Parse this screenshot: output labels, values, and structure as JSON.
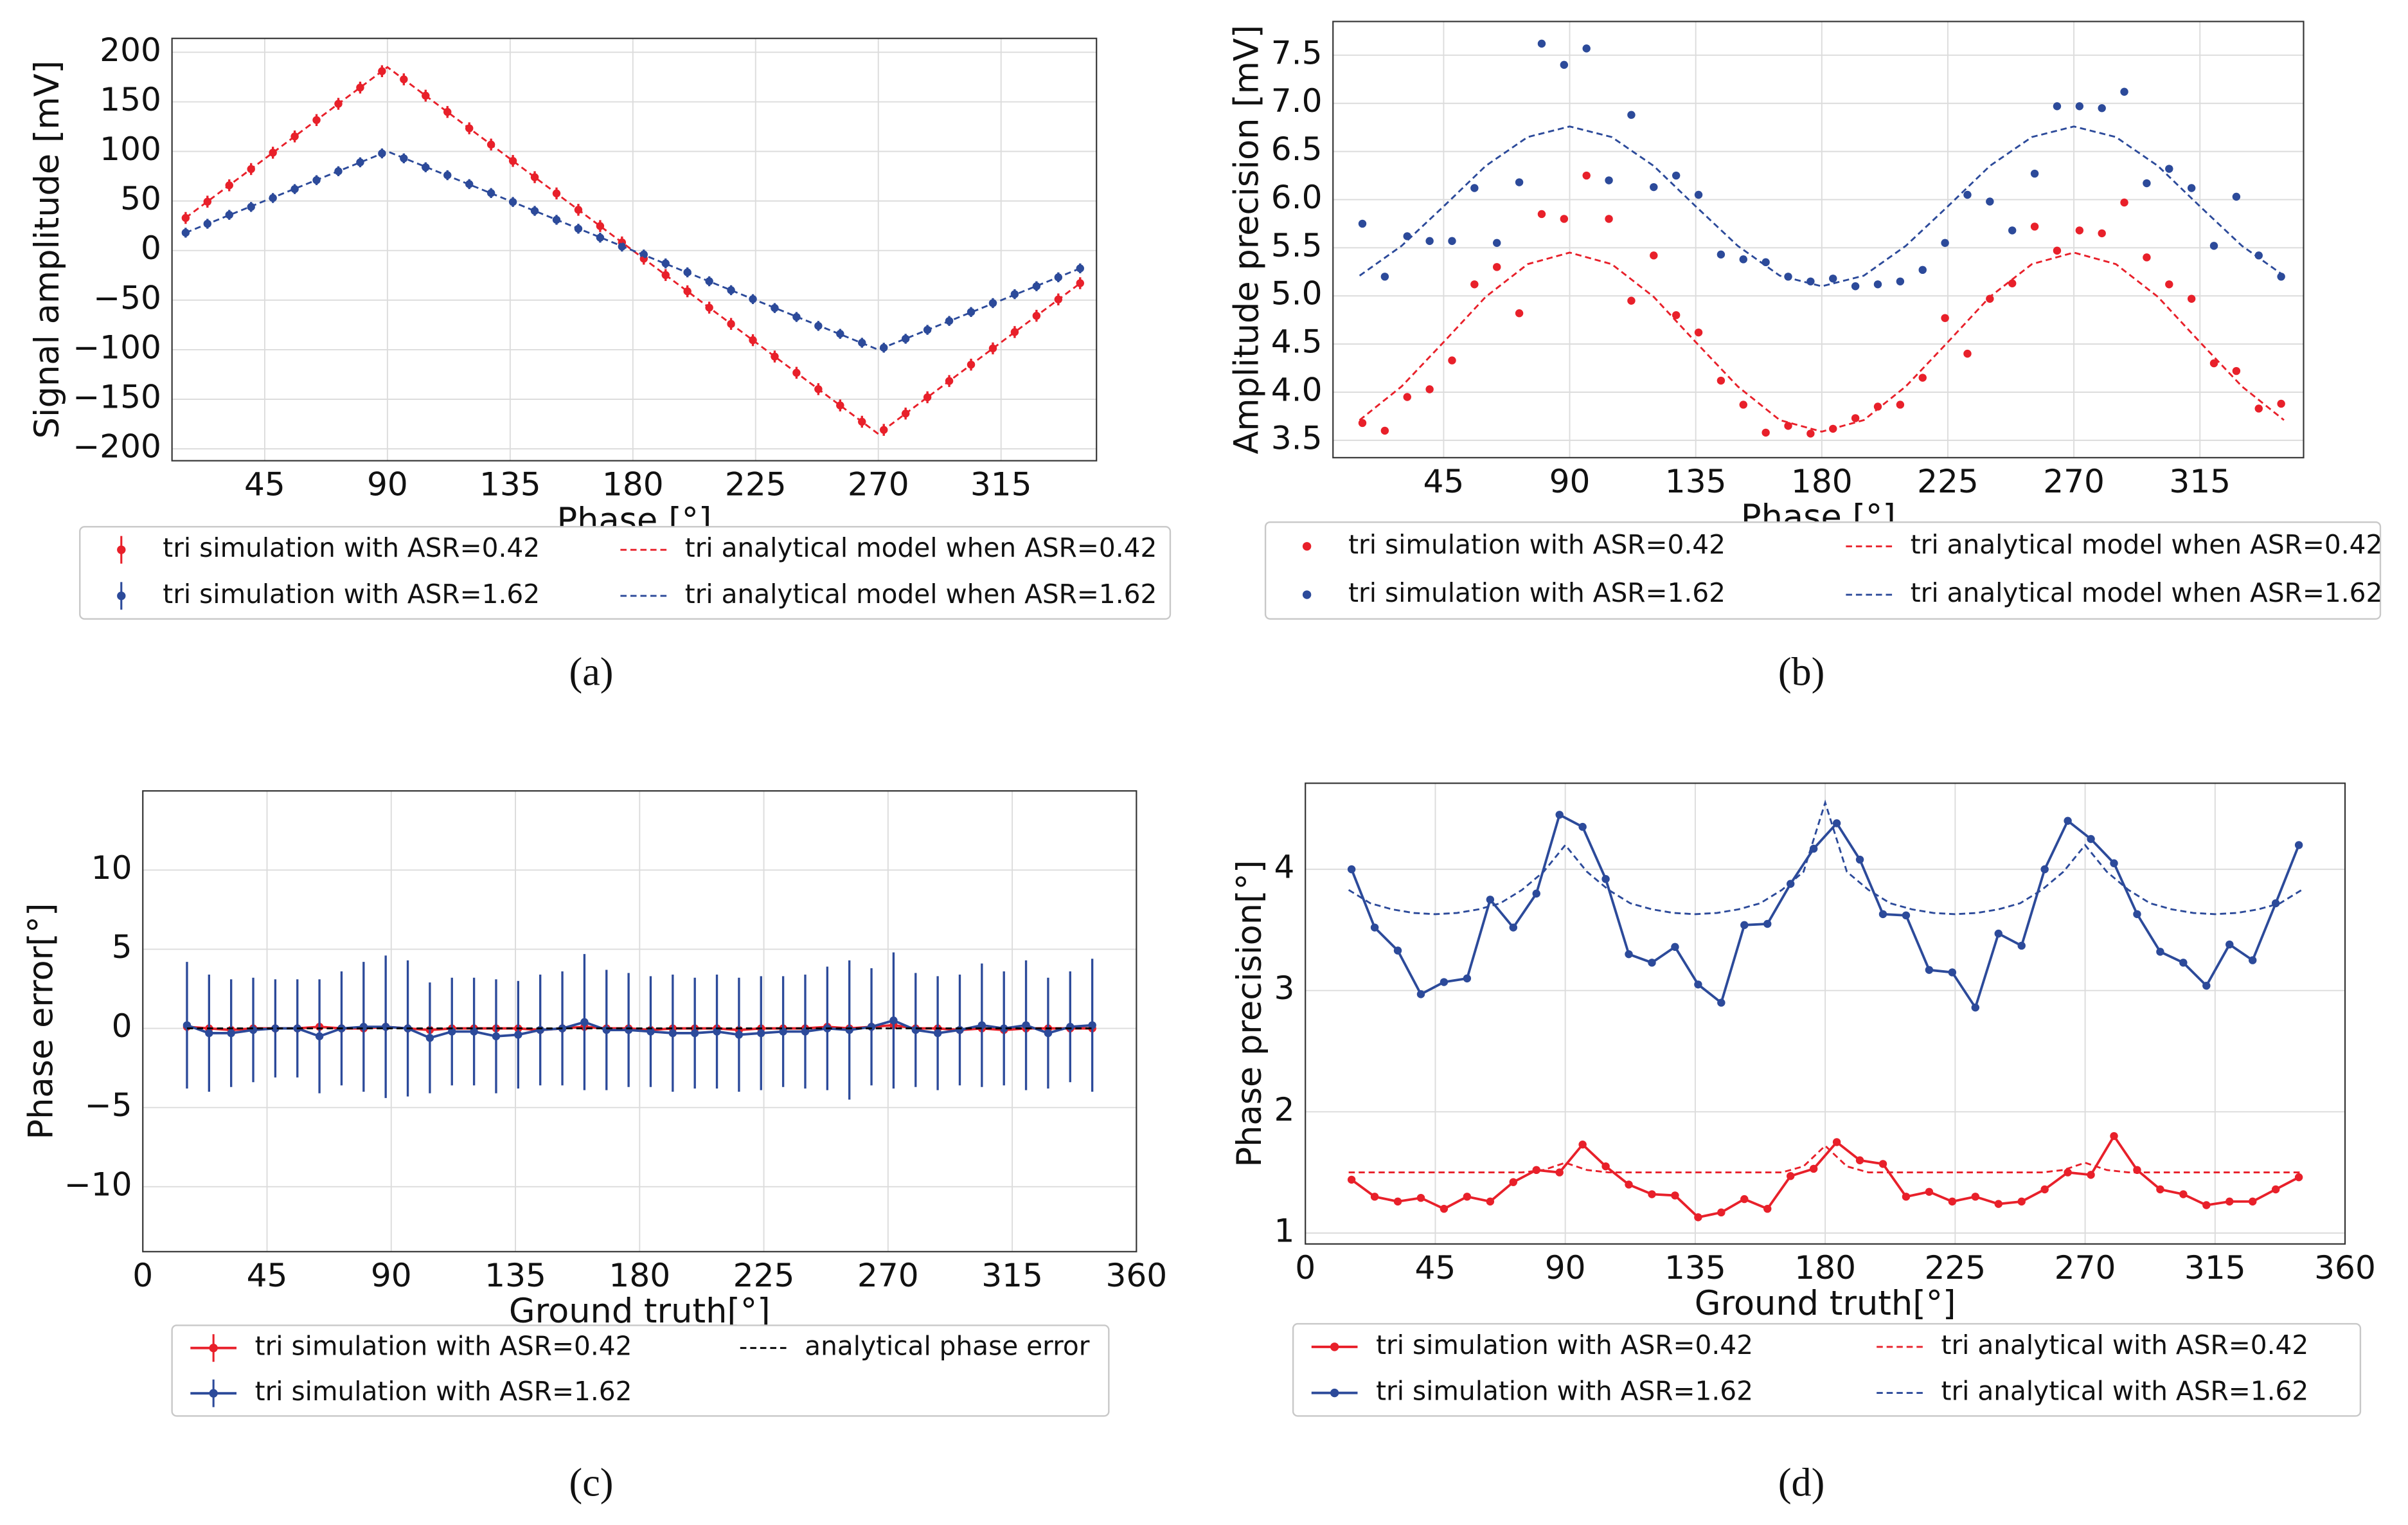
{
  "chart_data": [
    {
      "type": "errorbar",
      "panel_label": "(a)",
      "xlabel": "Phase [°]",
      "ylabel": "Signal amplitude [mV]",
      "grid": true,
      "legend_columns": 2,
      "xlim": [
        11,
        350
      ],
      "ylim": [
        -212,
        214
      ],
      "xticks": [
        45,
        90,
        135,
        180,
        225,
        270,
        315
      ],
      "yticks": [
        {
          "value": -200,
          "label": "−200"
        },
        {
          "value": -150,
          "label": "−150"
        },
        {
          "value": -100,
          "label": "−100"
        },
        {
          "value": -50,
          "label": "−50"
        },
        0,
        50,
        100,
        150,
        200
      ],
      "x": [
        16,
        24,
        32,
        40,
        48,
        56,
        64,
        72,
        80,
        88,
        96,
        104,
        112,
        120,
        128,
        136,
        144,
        152,
        160,
        168,
        176,
        184,
        192,
        200,
        208,
        216,
        224,
        232,
        240,
        248,
        256,
        264,
        272,
        280,
        288,
        296,
        304,
        312,
        320,
        328,
        336,
        344
      ],
      "series": [
        {
          "name": "tri simulation with ASR=0.42",
          "color": "#e8202a",
          "linestyle": "none",
          "marker": true,
          "error": 6,
          "values": [
            32.9,
            49.3,
            65.8,
            82.2,
            98.7,
            115.1,
            131.6,
            148,
            164.4,
            180.9,
            172.7,
            156.2,
            139.8,
            123.3,
            106.9,
            90.4,
            74,
            57.6,
            41.1,
            24.7,
            8.2,
            -8.2,
            -24.7,
            -41.1,
            -57.6,
            -74,
            -90.4,
            -106.9,
            -123.3,
            -139.8,
            -156.2,
            -172.7,
            -180.9,
            -164.4,
            -148,
            -131.6,
            -115.1,
            -98.7,
            -82.2,
            -65.8,
            -49.3,
            -32.9
          ]
        },
        {
          "name": "tri simulation with ASR=1.62",
          "color": "#2c4a9a",
          "linestyle": "none",
          "marker": true,
          "error": 5,
          "values": [
            18,
            27,
            36,
            44,
            53,
            62,
            71,
            80,
            89,
            98,
            93,
            84,
            76,
            67,
            58,
            49,
            40,
            31,
            22,
            13,
            4,
            -4,
            -13,
            -22,
            -31,
            -40,
            -49,
            -58,
            -67,
            -76,
            -84,
            -93,
            -98,
            -89,
            -80,
            -71,
            -62,
            -53,
            -44,
            -36,
            -27,
            -18
          ]
        },
        {
          "name": "tri analytical model when ASR=0.42",
          "color": "#e8202a",
          "linestyle": "dashed",
          "marker": false,
          "x": [
            16,
            90,
            270,
            344
          ],
          "values": [
            33,
            185,
            -185,
            -33
          ]
        },
        {
          "name": "tri analytical model when ASR=1.62",
          "color": "#2c4a9a",
          "linestyle": "dashed",
          "marker": false,
          "x": [
            16,
            90,
            270,
            344
          ],
          "values": [
            18,
            100,
            -100,
            -18
          ]
        }
      ]
    },
    {
      "type": "scatter",
      "panel_label": "(b)",
      "xlabel": "Phase [°]",
      "ylabel": "Amplitude precision [mV]",
      "grid": true,
      "legend_columns": 2,
      "xlim": [
        5.5,
        352
      ],
      "ylim": [
        3.32,
        7.85
      ],
      "xticks": [
        45,
        90,
        135,
        180,
        225,
        270,
        315
      ],
      "yticks": [
        3.5,
        {
          "value": 4,
          "label": "4.0"
        },
        4.5,
        {
          "value": 5,
          "label": "5.0"
        },
        5.5,
        {
          "value": 6,
          "label": "6.0"
        },
        6.5,
        {
          "value": 7,
          "label": "7.0"
        },
        7.5
      ],
      "x": [
        16,
        24,
        32,
        40,
        48,
        56,
        64,
        72,
        80,
        88,
        96,
        104,
        112,
        120,
        128,
        136,
        144,
        152,
        160,
        168,
        176,
        184,
        192,
        200,
        208,
        216,
        224,
        232,
        240,
        248,
        256,
        264,
        272,
        280,
        288,
        296,
        304,
        312,
        320,
        328,
        336,
        344
      ],
      "series": [
        {
          "name": "tri simulation with ASR=0.42",
          "color": "#e8202a",
          "linestyle": "none",
          "marker": true,
          "values": [
            3.68,
            3.6,
            3.95,
            4.03,
            4.33,
            5.12,
            5.3,
            4.82,
            5.85,
            5.8,
            6.25,
            5.8,
            4.95,
            5.42,
            4.8,
            4.62,
            4.12,
            3.87,
            3.58,
            3.65,
            3.57,
            3.62,
            3.73,
            3.85,
            3.87,
            4.15,
            4.77,
            4.4,
            4.97,
            5.13,
            5.72,
            5.47,
            5.68,
            5.65,
            5.97,
            5.4,
            5.12,
            4.97,
            4.3,
            4.22,
            3.83,
            3.88
          ]
        },
        {
          "name": "tri simulation with ASR=1.62",
          "color": "#2c4a9a",
          "linestyle": "none",
          "marker": true,
          "values": [
            5.75,
            5.2,
            5.62,
            5.57,
            5.57,
            6.12,
            5.55,
            6.18,
            7.62,
            7.4,
            7.57,
            6.2,
            6.88,
            6.13,
            6.25,
            6.05,
            5.43,
            5.38,
            5.35,
            5.2,
            5.15,
            5.18,
            5.1,
            5.12,
            5.15,
            5.27,
            5.55,
            6.05,
            5.98,
            5.68,
            6.27,
            6.97,
            6.97,
            6.95,
            7.12,
            6.17,
            6.32,
            6.12,
            5.52,
            6.03,
            5.42,
            5.2
          ]
        },
        {
          "name": "tri analytical model when ASR=0.42",
          "color": "#e8202a",
          "linestyle": "dashed",
          "marker": false,
          "x": [
            15,
            30,
            45,
            60,
            75,
            90,
            105,
            120,
            135,
            150,
            165,
            180,
            195,
            210,
            225,
            240,
            255,
            270,
            285,
            300,
            315,
            330,
            345
          ],
          "values": [
            3.71,
            4.06,
            4.52,
            4.99,
            5.33,
            5.45,
            5.33,
            4.99,
            4.52,
            4.06,
            3.71,
            3.59,
            3.71,
            4.06,
            4.52,
            4.99,
            5.33,
            5.45,
            5.33,
            4.99,
            4.52,
            4.06,
            3.71
          ]
        },
        {
          "name": "tri analytical model when ASR=1.62",
          "color": "#2c4a9a",
          "linestyle": "dashed",
          "marker": false,
          "x": [
            15,
            30,
            45,
            60,
            75,
            90,
            105,
            120,
            135,
            150,
            165,
            180,
            195,
            210,
            225,
            240,
            255,
            270,
            285,
            300,
            315,
            330,
            345
          ],
          "values": [
            5.21,
            5.52,
            5.93,
            6.35,
            6.65,
            6.76,
            6.65,
            6.35,
            5.93,
            5.52,
            5.21,
            5.1,
            5.21,
            5.52,
            5.93,
            6.35,
            6.65,
            6.76,
            6.65,
            6.35,
            5.93,
            5.52,
            5.21
          ]
        }
      ]
    },
    {
      "type": "errorbar",
      "panel_label": "(c)",
      "xlabel": "Ground truth[°]",
      "ylabel": "Phase error[°]",
      "grid": true,
      "legend_columns": 2,
      "xlim": [
        0,
        360
      ],
      "ylim": [
        -14.1,
        15
      ],
      "xticks": [
        0,
        45,
        90,
        135,
        180,
        225,
        270,
        315,
        360
      ],
      "yticks": [
        {
          "value": -10,
          "label": "−10"
        },
        {
          "value": -5,
          "label": "−5"
        },
        0,
        5,
        10
      ],
      "x": [
        16,
        24,
        32,
        40,
        48,
        56,
        64,
        72,
        80,
        88,
        96,
        104,
        112,
        120,
        128,
        136,
        144,
        152,
        160,
        168,
        176,
        184,
        192,
        200,
        208,
        216,
        224,
        232,
        240,
        248,
        256,
        264,
        272,
        280,
        288,
        296,
        304,
        312,
        320,
        328,
        336,
        344
      ],
      "series": [
        {
          "name": "tri simulation with ASR=0.42",
          "color": "#e8202a",
          "linestyle": "solid",
          "marker": true,
          "error": 0.3,
          "values": [
            0.1,
            0,
            -0.1,
            0,
            0,
            0,
            0.1,
            0,
            0,
            0.1,
            0,
            -0.1,
            0,
            0,
            0,
            0,
            -0.1,
            0,
            0.1,
            0,
            0,
            -0.1,
            0,
            0,
            0,
            -0.1,
            0,
            0,
            0,
            0.1,
            0,
            0.1,
            0.2,
            0,
            0,
            -0.1,
            0,
            -0.1,
            0,
            0,
            0,
            0
          ]
        },
        {
          "name": "tri simulation with ASR=1.62",
          "color": "#2c4a9a",
          "linestyle": "solid",
          "marker": true,
          "values": [
            0.2,
            -0.3,
            -0.3,
            -0.1,
            0,
            0,
            -0.5,
            0,
            0.1,
            0.1,
            0,
            -0.6,
            -0.2,
            -0.2,
            -0.5,
            -0.4,
            -0.1,
            0,
            0.4,
            -0.1,
            -0.1,
            -0.2,
            -0.3,
            -0.3,
            -0.2,
            -0.4,
            -0.3,
            -0.2,
            -0.2,
            0,
            -0.1,
            0.1,
            0.5,
            -0.1,
            -0.3,
            -0.1,
            0.2,
            0,
            0.2,
            -0.3,
            0.1,
            0.2
          ],
          "errors": [
            4,
            3.7,
            3.4,
            3.3,
            3.1,
            3.1,
            3.6,
            3.6,
            4.1,
            4.5,
            4.3,
            3.5,
            3.4,
            3.4,
            3.6,
            3.4,
            3.5,
            3.6,
            4.3,
            3.8,
            3.6,
            3.5,
            3.7,
            3.5,
            3.6,
            3.6,
            3.6,
            3.5,
            3.6,
            3.9,
            4.4,
            3.7,
            4.3,
            3.6,
            3.6,
            3.5,
            3.9,
            3.6,
            4.1,
            3.5,
            3.5,
            4.2
          ]
        },
        {
          "name": "analytical phase error",
          "color": "#000000",
          "linestyle": "dashed",
          "marker": false,
          "x": [
            16,
            344
          ],
          "values": [
            0,
            0
          ]
        }
      ]
    },
    {
      "type": "line",
      "panel_label": "(d)",
      "xlabel": "Ground truth[°]",
      "ylabel": "Phase precision[°]",
      "grid": true,
      "legend_columns": 2,
      "xlim": [
        0,
        360
      ],
      "ylim": [
        0.91,
        4.71
      ],
      "xticks": [
        0,
        45,
        90,
        135,
        180,
        225,
        270,
        315,
        360
      ],
      "yticks": [
        1,
        2,
        3,
        4
      ],
      "x": [
        16,
        24,
        32,
        40,
        48,
        56,
        64,
        72,
        80,
        88,
        96,
        104,
        112,
        120,
        128,
        136,
        144,
        152,
        160,
        168,
        176,
        184,
        192,
        200,
        208,
        216,
        224,
        232,
        240,
        248,
        256,
        264,
        272,
        280,
        288,
        296,
        304,
        312,
        320,
        328,
        336,
        344
      ],
      "series": [
        {
          "name": "tri simulation with ASR=0.42",
          "color": "#e8202a",
          "linestyle": "solid",
          "marker": true,
          "values": [
            1.44,
            1.3,
            1.26,
            1.29,
            1.2,
            1.3,
            1.26,
            1.42,
            1.52,
            1.5,
            1.73,
            1.55,
            1.4,
            1.32,
            1.31,
            1.13,
            1.17,
            1.28,
            1.2,
            1.47,
            1.53,
            1.75,
            1.6,
            1.57,
            1.3,
            1.34,
            1.26,
            1.3,
            1.24,
            1.26,
            1.36,
            1.5,
            1.48,
            1.8,
            1.52,
            1.36,
            1.32,
            1.23,
            1.26,
            1.26,
            1.36,
            1.46
          ]
        },
        {
          "name": "tri simulation with ASR=1.62",
          "color": "#2c4a9a",
          "linestyle": "solid",
          "marker": true,
          "values": [
            4.0,
            3.52,
            3.33,
            2.97,
            3.07,
            3.1,
            3.75,
            3.52,
            3.8,
            4.45,
            4.35,
            3.92,
            3.3,
            3.23,
            3.36,
            3.05,
            2.9,
            3.54,
            3.55,
            3.88,
            4.17,
            4.38,
            4.08,
            3.63,
            3.62,
            3.17,
            3.15,
            2.86,
            3.47,
            3.37,
            4.0,
            4.4,
            4.25,
            4.05,
            3.63,
            3.32,
            3.23,
            3.04,
            3.38,
            3.25,
            3.72,
            4.2
          ]
        },
        {
          "name": "tri analytical with ASR=0.42",
          "color": "#e8202a",
          "linestyle": "dashed",
          "marker": false,
          "x": [
            15,
            22.5,
            30,
            37.5,
            45,
            52.5,
            60,
            67.5,
            75,
            82.5,
            90,
            97.5,
            105,
            112.5,
            120,
            127.5,
            135,
            142.5,
            150,
            157.5,
            165,
            172.5,
            180,
            187.5,
            195,
            202.5,
            210,
            217.5,
            225,
            232.5,
            240,
            247.5,
            255,
            262.5,
            270,
            277.5,
            285,
            292.5,
            300,
            307.5,
            315,
            322.5,
            330,
            337.5,
            345
          ],
          "values": [
            1.5,
            1.5,
            1.5,
            1.5,
            1.5,
            1.5,
            1.5,
            1.5,
            1.5,
            1.52,
            1.58,
            1.52,
            1.5,
            1.5,
            1.5,
            1.5,
            1.5,
            1.5,
            1.5,
            1.5,
            1.5,
            1.55,
            1.72,
            1.55,
            1.5,
            1.5,
            1.5,
            1.5,
            1.5,
            1.5,
            1.5,
            1.5,
            1.5,
            1.52,
            1.58,
            1.52,
            1.5,
            1.5,
            1.5,
            1.5,
            1.5,
            1.5,
            1.5,
            1.5,
            1.5
          ]
        },
        {
          "name": "tri analytical with ASR=1.62",
          "color": "#2c4a9a",
          "linestyle": "dashed",
          "marker": false,
          "x": [
            15,
            22.5,
            30,
            37.5,
            45,
            52.5,
            60,
            67.5,
            75,
            82.5,
            90,
            97.5,
            105,
            112.5,
            120,
            127.5,
            135,
            142.5,
            150,
            157.5,
            165,
            172.5,
            180,
            187.5,
            195,
            202.5,
            210,
            217.5,
            225,
            232.5,
            240,
            247.5,
            255,
            262.5,
            270,
            277.5,
            285,
            292.5,
            300,
            307.5,
            315,
            322.5,
            330,
            337.5,
            345
          ],
          "values": [
            3.83,
            3.72,
            3.67,
            3.64,
            3.63,
            3.64,
            3.67,
            3.72,
            3.83,
            3.98,
            4.2,
            3.98,
            3.83,
            3.72,
            3.67,
            3.64,
            3.63,
            3.64,
            3.67,
            3.72,
            3.83,
            3.98,
            4.55,
            3.98,
            3.83,
            3.72,
            3.67,
            3.64,
            3.63,
            3.64,
            3.67,
            3.72,
            3.83,
            3.98,
            4.2,
            3.98,
            3.83,
            3.72,
            3.67,
            3.64,
            3.63,
            3.64,
            3.67,
            3.72,
            3.83
          ]
        }
      ]
    }
  ]
}
